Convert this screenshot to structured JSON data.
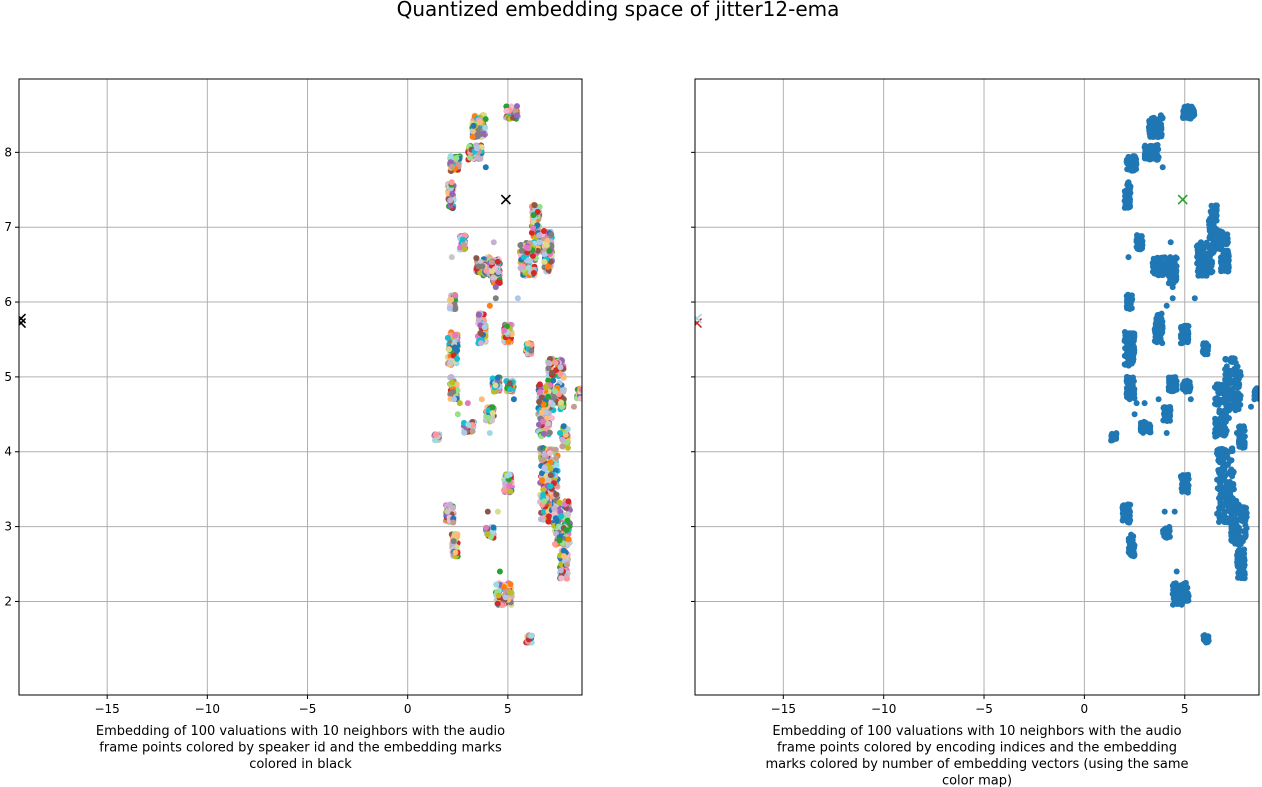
{
  "figure": {
    "suptitle": "Quantized embedding space of jitter12-ema"
  },
  "chart_data": [
    {
      "type": "scatter",
      "title": "",
      "xlabel": "Embedding of 100 valuations with 10 neighbors with the audio frame points colored by speaker id and the embedding marks colored in black",
      "xlabel_lines": [
        "Embedding of 100 valuations with 10 neighbors with the audio",
        "frame points colored by speaker id and the embedding marks",
        "colored in black"
      ],
      "ylabel": "",
      "xlim": [
        -19.4,
        8.7
      ],
      "ylim": [
        0.75,
        8.98
      ],
      "xticks": [
        -15,
        -10,
        -5,
        0,
        5
      ],
      "xtick_labels": [
        "−15",
        "−10",
        "−5",
        "0",
        "5"
      ],
      "yticks": [
        2,
        3,
        4,
        5,
        6,
        7,
        8
      ],
      "ytick_labels": [
        "2",
        "3",
        "4",
        "5",
        "6",
        "7",
        "8"
      ],
      "grid": true,
      "point_colors": "multicolor",
      "palette": [
        "#1f77b4",
        "#aec7e8",
        "#ff7f0e",
        "#ffbb78",
        "#2ca02c",
        "#98df8a",
        "#d62728",
        "#ff9896",
        "#9467bd",
        "#c5b0d5",
        "#8c564b",
        "#c49c94",
        "#e377c2",
        "#f7b6d2",
        "#7f7f7f",
        "#c7c7c7",
        "#bcbd22",
        "#dbdb8d",
        "#17becf",
        "#9edae5"
      ],
      "marker_color": "#000000",
      "clusters": [
        {
          "x": [
            3.2,
            3.9
          ],
          "y": [
            8.2,
            8.5
          ]
        },
        {
          "x": [
            4.9,
            5.5
          ],
          "y": [
            8.45,
            8.62
          ]
        },
        {
          "x": [
            3.0,
            3.7
          ],
          "y": [
            7.9,
            8.1
          ]
        },
        {
          "x": [
            2.1,
            2.6
          ],
          "y": [
            7.75,
            7.95
          ]
        },
        {
          "x": [
            2.0,
            2.3
          ],
          "y": [
            7.25,
            7.6
          ]
        },
        {
          "x": [
            6.2,
            6.6
          ],
          "y": [
            6.85,
            7.3
          ]
        },
        {
          "x": [
            6.4,
            7.2
          ],
          "y": [
            6.65,
            6.95
          ]
        },
        {
          "x": [
            5.6,
            6.4
          ],
          "y": [
            6.35,
            6.8
          ]
        },
        {
          "x": [
            6.8,
            7.2
          ],
          "y": [
            6.4,
            6.7
          ]
        },
        {
          "x": [
            2.6,
            2.9
          ],
          "y": [
            6.7,
            6.9
          ]
        },
        {
          "x": [
            3.4,
            4.6
          ],
          "y": [
            6.35,
            6.6
          ]
        },
        {
          "x": [
            4.2,
            4.6
          ],
          "y": [
            6.25,
            6.55
          ]
        },
        {
          "x": [
            2.1,
            2.4
          ],
          "y": [
            5.9,
            6.1
          ]
        },
        {
          "x": [
            3.5,
            3.9
          ],
          "y": [
            5.45,
            5.85
          ]
        },
        {
          "x": [
            4.8,
            5.2
          ],
          "y": [
            5.45,
            5.7
          ]
        },
        {
          "x": [
            5.9,
            6.2
          ],
          "y": [
            5.3,
            5.45
          ]
        },
        {
          "x": [
            2.0,
            2.5
          ],
          "y": [
            5.15,
            5.6
          ]
        },
        {
          "x": [
            7.0,
            7.8
          ],
          "y": [
            4.55,
            5.25
          ]
        },
        {
          "x": [
            6.5,
            7.1
          ],
          "y": [
            4.2,
            4.9
          ]
        },
        {
          "x": [
            8.45,
            8.7
          ],
          "y": [
            4.7,
            4.85
          ]
        },
        {
          "x": [
            2.1,
            2.5
          ],
          "y": [
            4.7,
            5.0
          ]
        },
        {
          "x": [
            4.2,
            4.6
          ],
          "y": [
            4.8,
            5.0
          ]
        },
        {
          "x": [
            4.9,
            5.3
          ],
          "y": [
            4.8,
            4.95
          ]
        },
        {
          "x": [
            3.9,
            4.3
          ],
          "y": [
            4.4,
            4.6
          ]
        },
        {
          "x": [
            1.3,
            1.6
          ],
          "y": [
            4.15,
            4.25
          ]
        },
        {
          "x": [
            2.8,
            3.3
          ],
          "y": [
            4.25,
            4.4
          ]
        },
        {
          "x": [
            7.7,
            8.0
          ],
          "y": [
            4.05,
            4.35
          ]
        },
        {
          "x": [
            6.6,
            7.5
          ],
          "y": [
            3.05,
            4.05
          ]
        },
        {
          "x": [
            4.8,
            5.2
          ],
          "y": [
            3.45,
            3.7
          ]
        },
        {
          "x": [
            7.3,
            8.1
          ],
          "y": [
            2.75,
            3.35
          ]
        },
        {
          "x": [
            1.9,
            2.3
          ],
          "y": [
            3.05,
            3.3
          ]
        },
        {
          "x": [
            2.2,
            2.5
          ],
          "y": [
            2.6,
            2.9
          ]
        },
        {
          "x": [
            3.9,
            4.3
          ],
          "y": [
            2.85,
            3.0
          ]
        },
        {
          "x": [
            7.6,
            8.0
          ],
          "y": [
            2.3,
            2.7
          ]
        },
        {
          "x": [
            4.4,
            5.2
          ],
          "y": [
            1.95,
            2.25
          ]
        },
        {
          "x": [
            5.9,
            6.2
          ],
          "y": [
            1.45,
            1.55
          ]
        }
      ],
      "sparse_points": [
        {
          "x": 3.9,
          "y": 7.8
        },
        {
          "x": 2.2,
          "y": 7.6
        },
        {
          "x": 4.4,
          "y": 6.05
        },
        {
          "x": 5.5,
          "y": 6.05
        },
        {
          "x": 4.4,
          "y": 6.2
        },
        {
          "x": 2.2,
          "y": 6.6
        },
        {
          "x": 4.1,
          "y": 5.95
        },
        {
          "x": 4.3,
          "y": 6.8
        },
        {
          "x": 2.6,
          "y": 4.65
        },
        {
          "x": 3.7,
          "y": 4.7
        },
        {
          "x": 4.0,
          "y": 3.2
        },
        {
          "x": 4.5,
          "y": 3.2
        },
        {
          "x": 4.6,
          "y": 2.4
        },
        {
          "x": 8.3,
          "y": 4.6
        },
        {
          "x": 7.6,
          "y": 4.25
        },
        {
          "x": 2.5,
          "y": 4.5
        },
        {
          "x": 3.0,
          "y": 4.65
        },
        {
          "x": 4.1,
          "y": 4.25
        },
        {
          "x": 6.6,
          "y": 4.9
        },
        {
          "x": 7.2,
          "y": 4.45
        },
        {
          "x": 5.3,
          "y": 4.7
        }
      ],
      "markers": [
        {
          "x": 4.9,
          "y": 7.37
        },
        {
          "x": -19.3,
          "y": 5.72
        },
        {
          "x": -19.3,
          "y": 5.78
        }
      ]
    },
    {
      "type": "scatter",
      "title": "",
      "xlabel": "Embedding of 100 valuations with 10 neighbors with the audio frame points colored by encoding indices and the embedding marks colored by number of embedding vectors (using the same color map)",
      "xlabel_lines": [
        "Embedding of 100 valuations with 10 neighbors with the audio",
        "frame points colored by encoding indices and the embedding",
        "marks colored by number of embedding vectors (using the same",
        "color map)"
      ],
      "ylabel": "",
      "xlim": [
        -19.4,
        8.7
      ],
      "ylim": [
        0.75,
        8.98
      ],
      "xticks": [
        -15,
        -10,
        -5,
        0,
        5
      ],
      "xtick_labels": [
        "−15",
        "−10",
        "−5",
        "0",
        "5"
      ],
      "yticks": [
        2,
        3,
        4,
        5,
        6,
        7,
        8
      ],
      "ytick_labels": [],
      "grid": true,
      "point_colors": "single",
      "point_color": "#1f77b4",
      "marker_colors": [
        "#2ca02c",
        "#d62728",
        "#9edae5"
      ],
      "markers": [
        {
          "x": 4.9,
          "y": 7.37,
          "color": "#2ca02c"
        },
        {
          "x": -19.3,
          "y": 5.72,
          "color": "#d62728"
        },
        {
          "x": -19.3,
          "y": 5.78,
          "color": "#9edae5"
        }
      ]
    }
  ]
}
